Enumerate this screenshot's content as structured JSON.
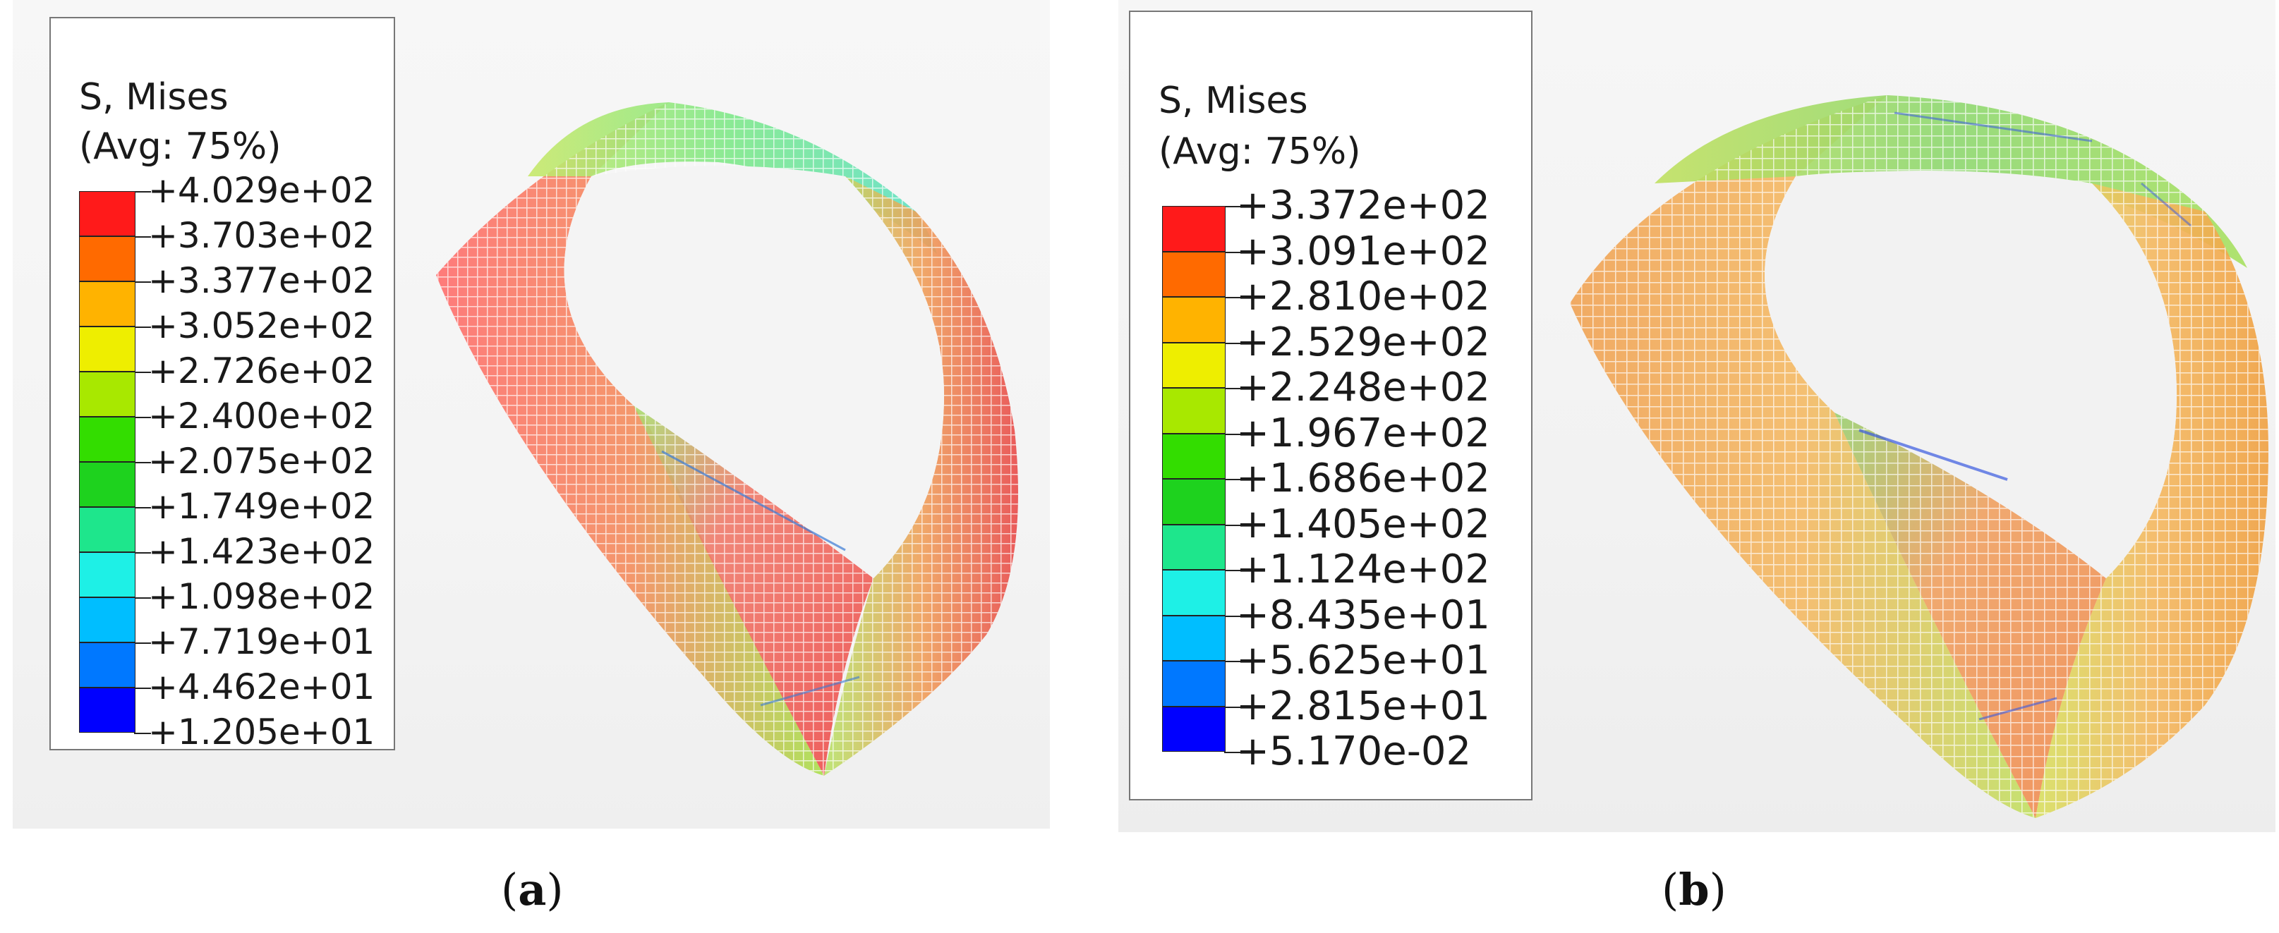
{
  "panels": [
    {
      "id": "a",
      "caption_letter": "a",
      "legend": {
        "title": "S, Mises",
        "subtitle": "(Avg: 75%)",
        "values": [
          "+4.029e+02",
          "+3.703e+02",
          "+3.377e+02",
          "+3.052e+02",
          "+2.726e+02",
          "+2.400e+02",
          "+2.075e+02",
          "+1.749e+02",
          "+1.423e+02",
          "+1.098e+02",
          "+7.719e+01",
          "+4.462e+01",
          "+1.205e+01"
        ],
        "colors": [
          "#ff1a1a",
          "#ff6a00",
          "#ffb300",
          "#eeee00",
          "#a8e800",
          "#33dd00",
          "#1ed21e",
          "#1ee68c",
          "#1ef0e6",
          "#00beff",
          "#0078ff",
          "#0000ff"
        ]
      },
      "model": {
        "dominant_color": "#e84a4a",
        "secondary_color": "#88e04a",
        "accent_color": "#3a7bd5"
      }
    },
    {
      "id": "b",
      "caption_letter": "b",
      "legend": {
        "title": "S, Mises",
        "subtitle": "(Avg: 75%)",
        "values": [
          "+3.372e+02",
          "+3.091e+02",
          "+2.810e+02",
          "+2.529e+02",
          "+2.248e+02",
          "+1.967e+02",
          "+1.686e+02",
          "+1.405e+02",
          "+1.124e+02",
          "+8.435e+01",
          "+5.625e+01",
          "+2.815e+01",
          "+5.170e-02"
        ],
        "colors": [
          "#ff1a1a",
          "#ff6a00",
          "#ffb300",
          "#eeee00",
          "#a8e800",
          "#33dd00",
          "#1ed21e",
          "#1ee68c",
          "#1ef0e6",
          "#00beff",
          "#0078ff",
          "#0000ff"
        ]
      },
      "model": {
        "dominant_color": "#f0a030",
        "secondary_color": "#8ad83a",
        "accent_color": "#3a5ae0"
      }
    }
  ]
}
